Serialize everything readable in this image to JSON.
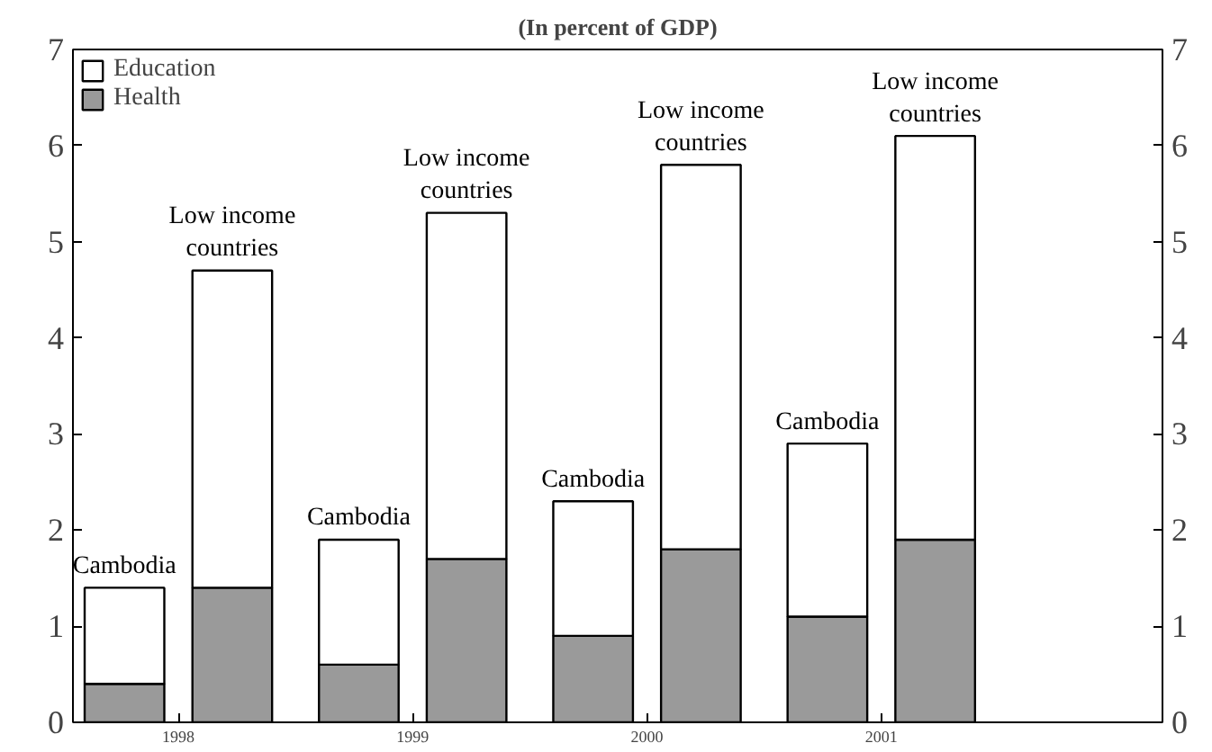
{
  "chart_data": {
    "type": "bar",
    "stacked": true,
    "title": "(In percent of GDP)",
    "x": [
      1997.77,
      1998.23,
      1998.77,
      1999.23,
      1999.77,
      2000.23,
      2000.77,
      2001.23
    ],
    "xlim": [
      1997.55,
      2002.2
    ],
    "xticks": [
      1998,
      1999,
      2000,
      2001
    ],
    "ylim": [
      0,
      7
    ],
    "yticks": [
      0,
      1,
      2,
      3,
      4,
      5,
      6,
      7
    ],
    "y2lim": [
      0,
      7
    ],
    "y2ticks": [
      0,
      1,
      2,
      3,
      4,
      5,
      6,
      7
    ],
    "series": [
      {
        "name": "Health",
        "color": "#9a9a9a",
        "values": [
          0.4,
          1.4,
          0.6,
          1.7,
          0.9,
          1.8,
          1.1,
          1.9
        ]
      },
      {
        "name": "Education",
        "color": "#ffffff",
        "values": [
          1.0,
          3.3,
          1.3,
          3.6,
          1.4,
          4.0,
          1.8,
          4.2
        ]
      }
    ],
    "annotations": [
      {
        "text": "Cambodia",
        "x": 1997.77,
        "y": 1.4
      },
      {
        "text": "Low income countries",
        "x": 1998.23,
        "y": 4.7
      },
      {
        "text": "Cambodia",
        "x": 1998.77,
        "y": 1.9
      },
      {
        "text": "Low income countries",
        "x": 1999.23,
        "y": 5.3
      },
      {
        "text": "Cambodia",
        "x": 1999.77,
        "y": 2.3
      },
      {
        "text": "Low income countries",
        "x": 2000.23,
        "y": 5.8
      },
      {
        "text": "Cambodia",
        "x": 2000.77,
        "y": 2.9
      },
      {
        "text": "Low income countries",
        "x": 2001.23,
        "y": 6.1
      }
    ],
    "legend": "top left",
    "grid": false
  }
}
